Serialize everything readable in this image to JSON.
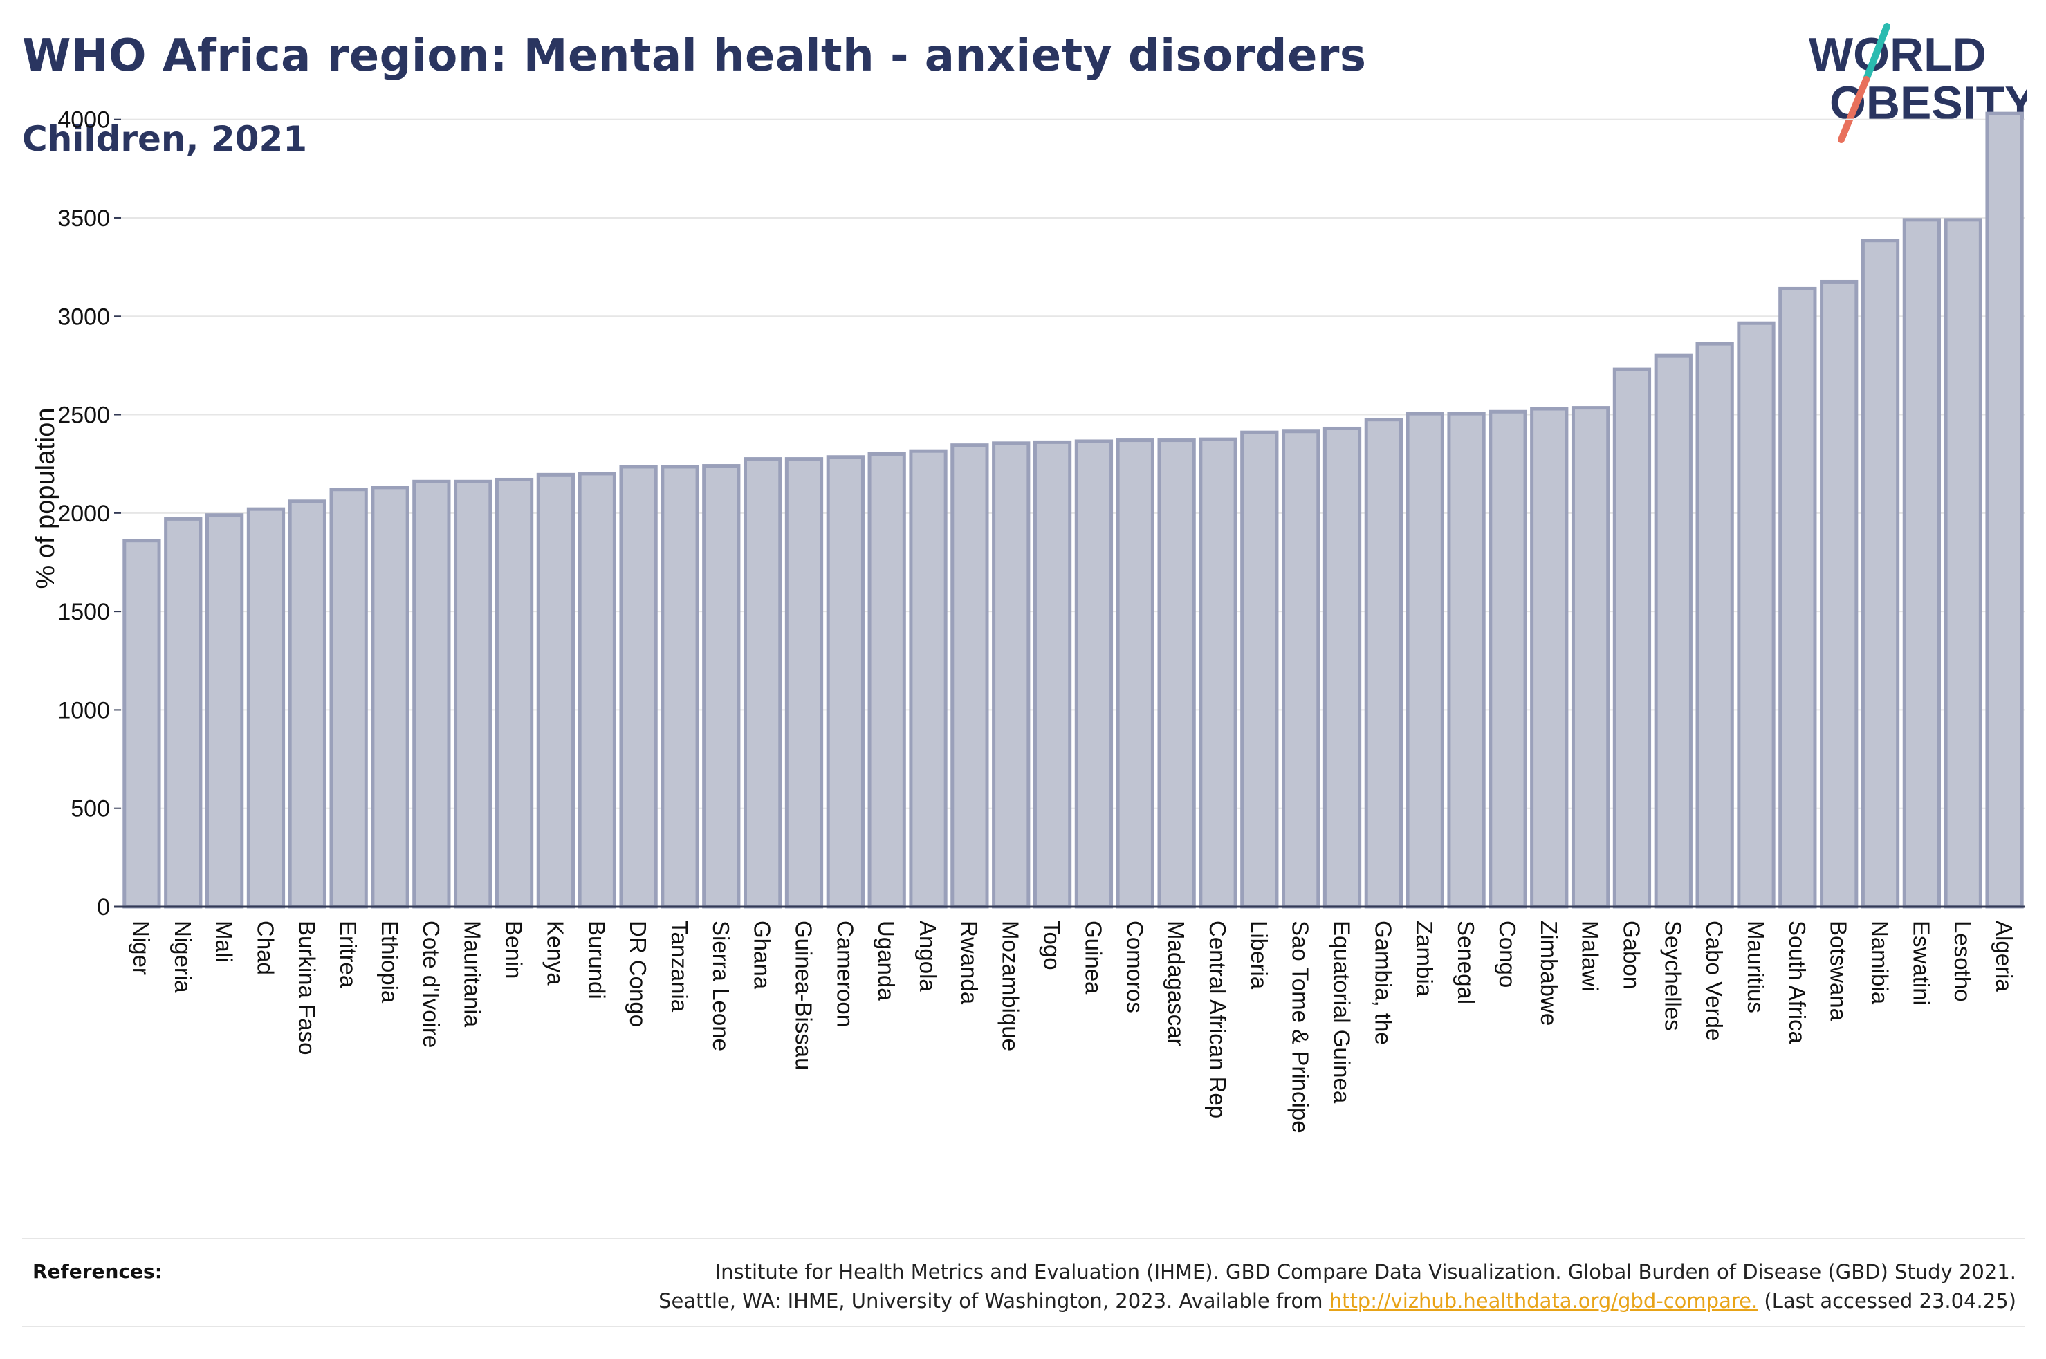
{
  "header": {
    "title": "WHO Africa region: Mental health - anxiety disorders",
    "subtitle": "Children, 2021"
  },
  "logo": {
    "line1": "WORLD",
    "line2": "OBESITY",
    "accent_teal": "#2bbbb0",
    "accent_red": "#e8705c",
    "text_color": "#2a3560"
  },
  "chart_data": {
    "type": "bar",
    "ylabel": "% of population",
    "xlabel": "",
    "ylim": [
      0,
      4150
    ],
    "yticks": [
      0,
      500,
      1000,
      1500,
      2000,
      2500,
      3000,
      3500,
      4000
    ],
    "grid": true,
    "bar_fill": "#c0c4d2",
    "bar_stroke": "#9aa0ba",
    "categories": [
      "Niger",
      "Nigeria",
      "Mali",
      "Chad",
      "Burkina Faso",
      "Eritrea",
      "Ethiopia",
      "Cote d'Ivoire",
      "Mauritania",
      "Benin",
      "Kenya",
      "Burundi",
      "DR Congo",
      "Tanzania",
      "Sierra Leone",
      "Ghana",
      "Guinea-Bissau",
      "Cameroon",
      "Uganda",
      "Angola",
      "Rwanda",
      "Mozambique",
      "Togo",
      "Guinea",
      "Comoros",
      "Madagascar",
      "Central African Rep",
      "Liberia",
      "Sao Tome & Principe",
      "Equatorial Guinea",
      "Gambia, the",
      "Zambia",
      "Senegal",
      "Congo",
      "Zimbabwe",
      "Malawi",
      "Gabon",
      "Seychelles",
      "Cabo Verde",
      "Mauritius",
      "South Africa",
      "Botswana",
      "Namibia",
      "Eswatini",
      "Lesotho",
      "Algeria"
    ],
    "values": [
      1860,
      1970,
      1990,
      2020,
      2060,
      2120,
      2130,
      2160,
      2160,
      2170,
      2195,
      2200,
      2235,
      2235,
      2240,
      2275,
      2275,
      2285,
      2300,
      2315,
      2345,
      2355,
      2360,
      2365,
      2370,
      2370,
      2375,
      2410,
      2415,
      2430,
      2475,
      2505,
      2505,
      2515,
      2530,
      2535,
      2730,
      2800,
      2860,
      2965,
      3140,
      3175,
      3385,
      3490,
      3490,
      4030
    ]
  },
  "references": {
    "label": "References:",
    "line1": "Institute for Health Metrics and Evaluation (IHME). GBD Compare Data Visualization. Global Burden of Disease (GBD) Study 2021.",
    "line2_prefix": "Seattle, WA: IHME, University of Washington, 2023. Available from ",
    "link": "http://vizhub.healthdata.org/gbd-compare.",
    "line2_suffix": " (Last accessed 23.04.25)"
  }
}
